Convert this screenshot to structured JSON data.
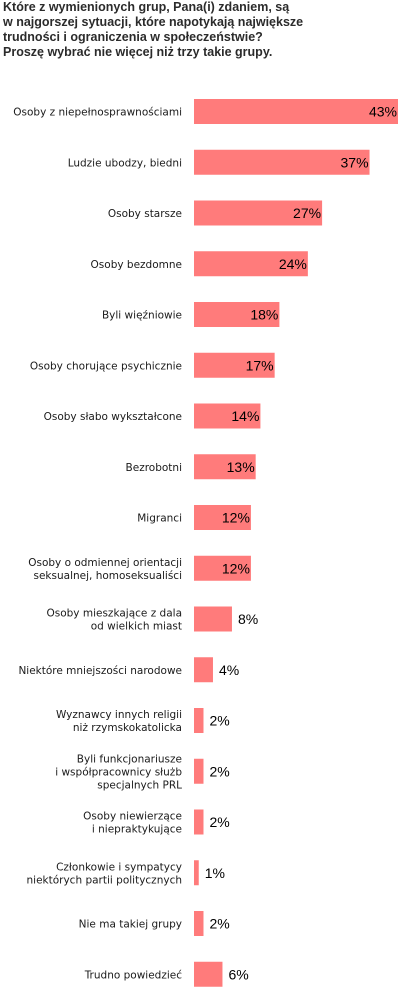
{
  "title_lines": [
    "Które z wymienionych grup, Pana(i) zdaniem, są",
    "w najgorszej sytuacji, które napotykają największe",
    "trudności i ograniczenia w społeczeństwie?",
    "Proszę wybrać nie więcej niż trzy takie grupy."
  ],
  "chart_data": {
    "type": "bar",
    "orientation": "horizontal",
    "title": "Które z wymienionych grup, Pana(i) zdaniem, są w najgorszej sytuacji, które napotykają największe trudności i ograniczenia w społeczeństwie? Proszę wybrać nie więcej niż trzy takie grupy.",
    "categories": [
      [
        "Osoby z niepełnosprawnościami"
      ],
      [
        "Ludzie ubodzy, biedni"
      ],
      [
        "Osoby starsze"
      ],
      [
        "Osoby bezdomne"
      ],
      [
        "Byli więźniowie"
      ],
      [
        "Osoby chorujące psychicznie"
      ],
      [
        "Osoby słabo wykształcone"
      ],
      [
        "Bezrobotni"
      ],
      [
        "Migranci"
      ],
      [
        "Osoby o odmiennej orientacji",
        "seksualnej, homoseksualiści"
      ],
      [
        "Osoby mieszkające z dala",
        "od wielkich miast"
      ],
      [
        "Niektóre mniejszości narodowe"
      ],
      [
        "Wyznawcy innych religii",
        "niż rzymskokatolicka"
      ],
      [
        "Byli funkcjonariusze",
        "i współpracownicy służb",
        "specjalnych PRL"
      ],
      [
        "Osoby niewierzące",
        "i niepraktykujące"
      ],
      [
        "Członkowie i sympatycy",
        "niektórych partii politycznych"
      ],
      [
        "Nie ma takiej grupy"
      ],
      [
        "Trudno powiedzieć"
      ]
    ],
    "values": [
      43,
      37,
      27,
      24,
      18,
      17,
      14,
      13,
      12,
      12,
      8,
      4,
      2,
      2,
      2,
      1,
      2,
      6
    ],
    "value_labels": [
      "43%",
      "37%",
      "27%",
      "24%",
      "18%",
      "17%",
      "14%",
      "13%",
      "12%",
      "12%",
      "8%",
      "4%",
      "2%",
      "2%",
      "2%",
      "1%",
      "2%",
      "6%"
    ],
    "unit": "%",
    "xlim": [
      0,
      43
    ],
    "bar_color": "#ff7b7b",
    "grid": false,
    "legend": "none"
  }
}
